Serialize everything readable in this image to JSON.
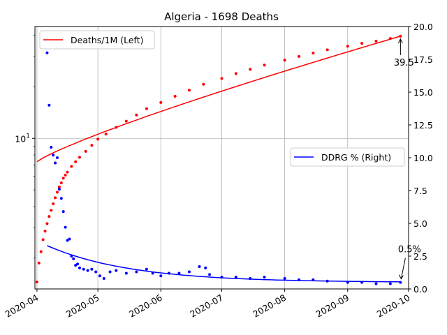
{
  "chart_data": {
    "type": "line",
    "title": "Algeria - 1698 Deaths",
    "xlabel": "",
    "ylabel_left": "",
    "ylabel_right": "",
    "x_axis": {
      "type": "date",
      "range": [
        "2020-03-31",
        "2020-10-01"
      ],
      "tick_values": [
        "2020-04-01",
        "2020-05-01",
        "2020-06-01",
        "2020-07-01",
        "2020-08-01",
        "2020-09-01",
        "2020-10-01"
      ],
      "tick_labels": [
        "2020-04",
        "2020-05",
        "2020-06",
        "2020-07",
        "2020-08",
        "2020-09",
        "2020-10"
      ]
    },
    "y_left": {
      "scale": "log",
      "range": [
        1.32,
        45
      ],
      "tick_values": [
        10
      ],
      "tick_labels": [
        "10^1"
      ]
    },
    "y_right": {
      "scale": "linear",
      "range": [
        0,
        20
      ],
      "tick_values": [
        0,
        2.5,
        5,
        7.5,
        10,
        12.5,
        15,
        17.5,
        20
      ],
      "tick_labels": [
        "0.0",
        "2.5",
        "5.0",
        "7.5",
        "10.0",
        "12.5",
        "15.0",
        "17.5",
        "20.0"
      ]
    },
    "grid": true,
    "legends": [
      {
        "label": "Deaths/1M (Left)",
        "color": "#ff0000",
        "placement": "upper-left"
      },
      {
        "label": "DDRG % (Right)",
        "color": "#0000ff",
        "placement": "center-right"
      }
    ],
    "series": [
      {
        "name": "Deaths/1M (Left)",
        "axis": "left",
        "color": "#ff0000",
        "style": "points-with-fit",
        "x": [
          "2020-04-01",
          "2020-04-02",
          "2020-04-03",
          "2020-04-04",
          "2020-04-05",
          "2020-04-06",
          "2020-04-07",
          "2020-04-08",
          "2020-04-09",
          "2020-04-10",
          "2020-04-11",
          "2020-04-12",
          "2020-04-13",
          "2020-04-14",
          "2020-04-15",
          "2020-04-16",
          "2020-04-18",
          "2020-04-20",
          "2020-04-22",
          "2020-04-25",
          "2020-04-28",
          "2020-05-01",
          "2020-05-05",
          "2020-05-10",
          "2020-05-15",
          "2020-05-20",
          "2020-05-25",
          "2020-06-01",
          "2020-06-08",
          "2020-06-15",
          "2020-06-22",
          "2020-07-01",
          "2020-07-08",
          "2020-07-15",
          "2020-07-22",
          "2020-08-01",
          "2020-08-08",
          "2020-08-15",
          "2020-08-22",
          "2020-09-01",
          "2020-09-08",
          "2020-09-15",
          "2020-09-22",
          "2020-09-27"
        ],
        "values": [
          1.45,
          1.87,
          2.18,
          2.56,
          2.87,
          3.18,
          3.5,
          3.8,
          4.15,
          4.5,
          4.85,
          5.2,
          5.5,
          5.85,
          6.1,
          6.35,
          6.85,
          7.3,
          7.75,
          8.4,
          9.1,
          9.9,
          10.6,
          11.6,
          12.6,
          13.7,
          14.9,
          16.2,
          17.6,
          19.1,
          20.7,
          22.4,
          23.9,
          25.3,
          26.8,
          28.6,
          30.1,
          31.5,
          32.9,
          34.5,
          35.9,
          37.0,
          38.3,
          39.5
        ],
        "fit_start": 7.3,
        "fit_end": 39.5,
        "end_label": "39.5"
      },
      {
        "name": "DDRG % (Right)",
        "axis": "right",
        "color": "#0000ff",
        "style": "points-with-fit",
        "x": [
          "2020-04-06",
          "2020-04-07",
          "2020-04-08",
          "2020-04-09",
          "2020-04-10",
          "2020-04-11",
          "2020-04-12",
          "2020-04-13",
          "2020-04-14",
          "2020-04-15",
          "2020-04-16",
          "2020-04-17",
          "2020-04-18",
          "2020-04-19",
          "2020-04-20",
          "2020-04-21",
          "2020-04-22",
          "2020-04-24",
          "2020-04-26",
          "2020-04-28",
          "2020-04-30",
          "2020-05-02",
          "2020-05-04",
          "2020-05-07",
          "2020-05-10",
          "2020-05-15",
          "2020-05-20",
          "2020-05-25",
          "2020-05-28",
          "2020-06-01",
          "2020-06-05",
          "2020-06-10",
          "2020-06-15",
          "2020-06-20",
          "2020-06-23",
          "2020-06-25",
          "2020-07-01",
          "2020-07-08",
          "2020-07-15",
          "2020-07-22",
          "2020-08-01",
          "2020-08-08",
          "2020-08-15",
          "2020-08-22",
          "2020-09-01",
          "2020-09-08",
          "2020-09-15",
          "2020-09-22",
          "2020-09-27"
        ],
        "values": [
          18.0,
          14.0,
          10.8,
          10.2,
          9.6,
          10.0,
          7.6,
          6.9,
          5.9,
          4.7,
          3.7,
          3.8,
          2.5,
          2.3,
          1.8,
          1.9,
          1.6,
          1.5,
          1.4,
          1.5,
          1.3,
          1.0,
          0.8,
          1.3,
          1.4,
          1.2,
          1.3,
          1.5,
          1.2,
          1.0,
          1.2,
          1.2,
          1.3,
          1.7,
          1.6,
          1.1,
          0.9,
          0.9,
          0.8,
          0.9,
          0.8,
          0.7,
          0.7,
          0.6,
          0.5,
          0.5,
          0.4,
          0.4,
          0.5
        ],
        "fit_start": 3.3,
        "fit_end": 0.5,
        "end_label": "0.5%"
      }
    ]
  }
}
